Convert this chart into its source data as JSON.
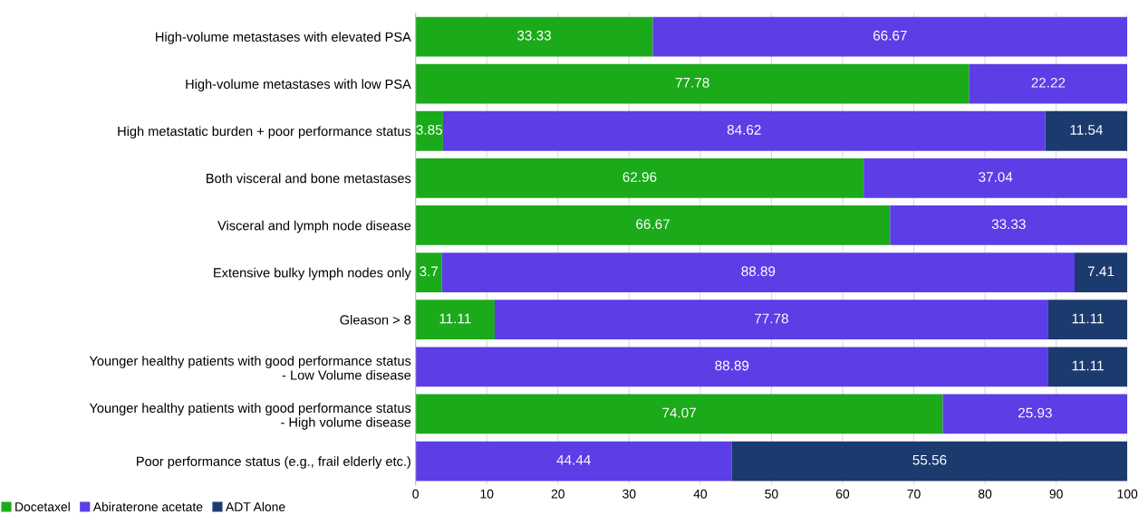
{
  "chart_data": {
    "type": "bar",
    "orientation": "horizontal",
    "stacked": true,
    "categories": [
      "High-volume metastases with elevated PSA",
      "High-volume metastases with low PSA",
      "High metastatic burden + poor performance status",
      "Both visceral and bone metastases",
      "Visceral and lymph node disease",
      "Extensive bulky lymph nodes only",
      "Gleason > 8",
      "Younger healthy patients with good performance status\n- Low Volume disease",
      "Younger healthy patients with good performance status\n- High volume disease",
      "Poor performance status (e.g., frail elderly etc.)"
    ],
    "series": [
      {
        "name": "Docetaxel",
        "color": "#1aaa1a",
        "values": [
          33.33,
          77.78,
          3.85,
          62.96,
          66.67,
          3.7,
          11.11,
          0,
          74.07,
          0
        ],
        "value_labels": [
          "33.33",
          "77.78",
          "3.85",
          "62.96",
          "66.67",
          "3.7",
          "11.11",
          null,
          "74.07",
          null
        ]
      },
      {
        "name": "Abiraterone acetate",
        "color": "#5c3de6",
        "values": [
          66.67,
          22.22,
          84.62,
          37.04,
          33.33,
          88.89,
          77.78,
          88.89,
          25.93,
          44.44
        ],
        "value_labels": [
          "66.67",
          "22.22",
          "84.62",
          "37.04",
          "33.33",
          "88.89",
          "77.78",
          "88.89",
          "25.93",
          "44.44"
        ]
      },
      {
        "name": "ADT Alone",
        "color": "#1b3a6e",
        "values": [
          0,
          0,
          11.54,
          0,
          0,
          7.41,
          11.11,
          11.11,
          0,
          55.56
        ],
        "value_labels": [
          null,
          null,
          "11.54",
          null,
          null,
          "7.41",
          "11.11",
          "11.11",
          null,
          "55.56"
        ]
      }
    ],
    "xlim": [
      0,
      100
    ],
    "xticks": [
      0,
      10,
      20,
      30,
      40,
      50,
      60,
      70,
      80,
      90,
      100
    ],
    "grid": "x",
    "legend": "bottom left"
  }
}
